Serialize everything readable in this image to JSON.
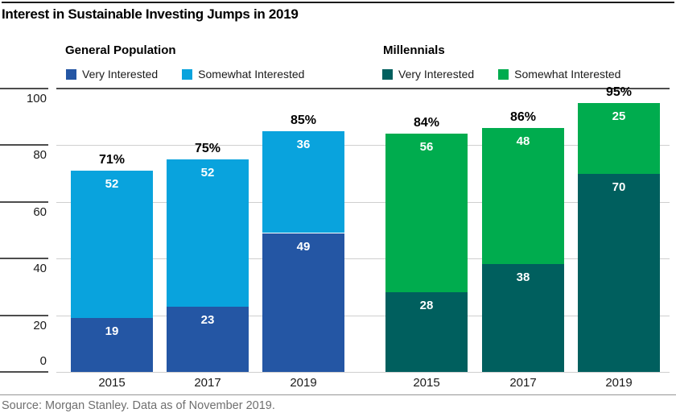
{
  "title": "Interest in Sustainable Investing Jumps in 2019",
  "source_note": "Source: Morgan Stanley. Data as of November 2019.",
  "colors": {
    "gp_very": "#2456A4",
    "gp_somewhat": "#09A3DD",
    "mill_very": "#005F5E",
    "mill_somewhat": "#00AC4E",
    "grid_light": "#cfcfcf",
    "grid_dark": "#4d4d4d",
    "source_text": "#6f6f6f"
  },
  "chart_data": {
    "type": "bar",
    "stacked": true,
    "categories": [
      "2015",
      "2017",
      "2019"
    ],
    "ylim": [
      0,
      100
    ],
    "y_ticks": [
      0,
      20,
      40,
      60,
      80,
      100
    ],
    "grid": true,
    "legend_position": "top-per-group",
    "groups": [
      {
        "name": "General Population",
        "series": [
          {
            "name": "Very Interested",
            "color": "#2456A4",
            "values": [
              19,
              23,
              49
            ]
          },
          {
            "name": "Somewhat Interested",
            "color": "#09A3DD",
            "values": [
              52,
              52,
              36
            ]
          }
        ],
        "totals": [
          "71%",
          "75%",
          "85%"
        ]
      },
      {
        "name": "Millennials",
        "series": [
          {
            "name": "Very Interested",
            "color": "#005F5E",
            "values": [
              28,
              38,
              70
            ]
          },
          {
            "name": "Somewhat Interested",
            "color": "#00AC4E",
            "values": [
              56,
              48,
              25
            ]
          }
        ],
        "totals": [
          "84%",
          "86%",
          "95%"
        ]
      }
    ]
  }
}
